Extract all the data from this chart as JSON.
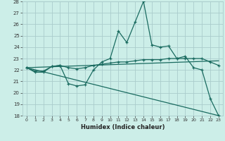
{
  "xlabel": "Humidex (Indice chaleur)",
  "bg_color": "#cceee8",
  "grid_color": "#aacccc",
  "line_color": "#1a6b60",
  "xlim": [
    -0.5,
    23.5
  ],
  "ylim": [
    18,
    28
  ],
  "xticks": [
    0,
    1,
    2,
    3,
    4,
    5,
    6,
    7,
    8,
    9,
    10,
    11,
    12,
    13,
    14,
    15,
    16,
    17,
    18,
    19,
    20,
    21,
    22,
    23
  ],
  "yticks": [
    18,
    19,
    20,
    21,
    22,
    23,
    24,
    25,
    26,
    27,
    28
  ],
  "line1_x": [
    0,
    1,
    2,
    3,
    4,
    5,
    6,
    7,
    8,
    9,
    10,
    11,
    12,
    13,
    14,
    15,
    16,
    17,
    18,
    19,
    20,
    21,
    22,
    23
  ],
  "line1_y": [
    22.2,
    21.8,
    21.8,
    22.3,
    22.4,
    20.8,
    20.6,
    20.7,
    22.0,
    22.7,
    23.0,
    25.4,
    24.4,
    26.2,
    28.0,
    24.2,
    24.0,
    24.1,
    23.0,
    23.2,
    22.2,
    22.0,
    19.5,
    18.0
  ],
  "line2_x": [
    0,
    1,
    2,
    3,
    4,
    5,
    6,
    7,
    8,
    9,
    10,
    11,
    12,
    13,
    14,
    15,
    16,
    17,
    18,
    19,
    20,
    21,
    22,
    23
  ],
  "line2_y": [
    22.2,
    21.9,
    21.9,
    22.3,
    22.4,
    22.2,
    22.1,
    22.2,
    22.4,
    22.5,
    22.6,
    22.7,
    22.7,
    22.8,
    22.9,
    22.9,
    22.9,
    23.0,
    23.0,
    23.0,
    23.0,
    23.0,
    22.7,
    22.4
  ],
  "line3_x": [
    0,
    23
  ],
  "line3_y": [
    22.2,
    18.0
  ],
  "line4_x": [
    0,
    23
  ],
  "line4_y": [
    22.2,
    22.8
  ]
}
